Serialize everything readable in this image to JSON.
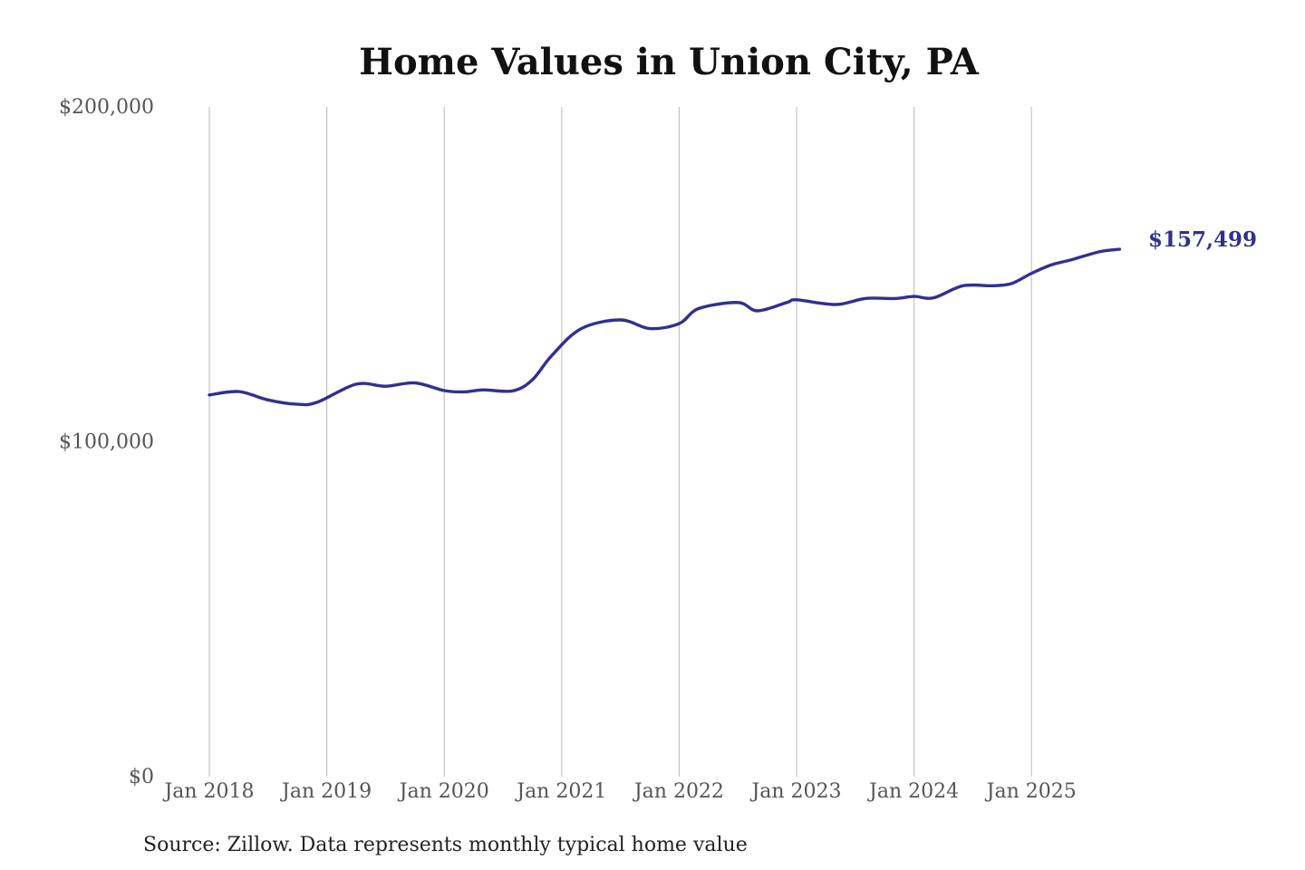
{
  "chart_data": {
    "type": "line",
    "title": "Home Values in Union City, PA",
    "source": "Source: Zillow. Data represents monthly typical home value",
    "xlabel": "",
    "ylabel": "",
    "ylim": [
      0,
      200000
    ],
    "xlim": [
      "2018-01",
      "2025-10"
    ],
    "y_ticks": [
      {
        "value": 0,
        "label": "$0"
      },
      {
        "value": 100000,
        "label": "$100,000"
      },
      {
        "value": 200000,
        "label": "$200,000"
      }
    ],
    "x_ticks": [
      {
        "date": "2018-01",
        "label": "Jan 2018"
      },
      {
        "date": "2019-01",
        "label": "Jan 2019"
      },
      {
        "date": "2020-01",
        "label": "Jan 2020"
      },
      {
        "date": "2021-01",
        "label": "Jan 2021"
      },
      {
        "date": "2022-01",
        "label": "Jan 2022"
      },
      {
        "date": "2023-01",
        "label": "Jan 2023"
      },
      {
        "date": "2024-01",
        "label": "Jan 2024"
      },
      {
        "date": "2025-01",
        "label": "Jan 2025"
      }
    ],
    "vertical_grid": true,
    "horizontal_grid": false,
    "series_color": "#332f8f",
    "end_label": "$157,499",
    "series": [
      {
        "x": [
          "2018-01",
          "2018-04",
          "2018-07",
          "2018-10",
          "2018-12",
          "2019-04",
          "2019-07",
          "2019-10",
          "2020-01",
          "2020-03",
          "2020-05",
          "2020-08",
          "2020-10",
          "2020-12",
          "2021-03",
          "2021-07",
          "2021-10",
          "2022-01",
          "2022-03",
          "2022-07",
          "2022-09",
          "2022-12",
          "2023-01",
          "2023-05",
          "2023-08",
          "2023-11",
          "2024-01",
          "2024-03",
          "2024-06",
          "2024-09",
          "2024-11",
          "2025-01",
          "2025-03",
          "2025-05",
          "2025-08",
          "2025-10"
        ],
        "values": [
          114000,
          115000,
          112500,
          111200,
          111800,
          117200,
          116600,
          117600,
          115300,
          114900,
          115500,
          115200,
          118500,
          125800,
          133800,
          136400,
          133800,
          135300,
          139800,
          141600,
          139100,
          141600,
          142400,
          141000,
          142800,
          142800,
          143400,
          143000,
          146600,
          146600,
          147300,
          150300,
          152800,
          154300,
          156800,
          157499
        ]
      }
    ]
  }
}
